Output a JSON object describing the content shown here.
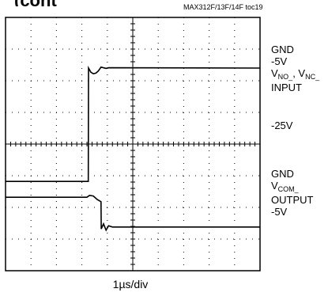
{
  "header": {
    "title_fragment": "(cont",
    "toc_tag": "MAX312F/13F/14F toc19"
  },
  "labels": {
    "gnd_top": "GND",
    "minus5_top": "-5V",
    "v_no": "V",
    "v_no_sub": "NO_",
    "v_sep": ", V",
    "v_nc_sub": "NC_",
    "input": "INPUT",
    "minus25": "-25V",
    "gnd_bottom": "GND",
    "v_com": "V",
    "v_com_sub": "COM_",
    "output": "OUTPUT",
    "minus5_bottom": "-5V"
  },
  "timebase": "1µs/div",
  "chart_data": {
    "type": "line",
    "title": "",
    "xlabel": "1µs/div",
    "ylabel": "",
    "divisions": {
      "x": 10,
      "y": 8
    },
    "grid": true,
    "series": [
      {
        "x": [
          0,
          3.25,
          3.26,
          3.35,
          3.45,
          3.55,
          3.65,
          3.75,
          3.95,
          4.05,
          10
        ],
        "y": [
          5.18,
          5.18,
          1.6,
          1.73,
          1.78,
          1.76,
          1.69,
          1.57,
          1.61,
          1.59,
          1.6
        ]
      },
      {
        "x": [
          0,
          3.2,
          3.3,
          3.45,
          3.6,
          3.75,
          3.76,
          3.85,
          3.95,
          4.05,
          4.2,
          10
        ],
        "y": [
          5.68,
          5.68,
          5.62,
          5.64,
          5.75,
          5.82,
          6.68,
          6.52,
          6.72,
          6.58,
          6.62,
          6.62
        ]
      }
    ]
  }
}
